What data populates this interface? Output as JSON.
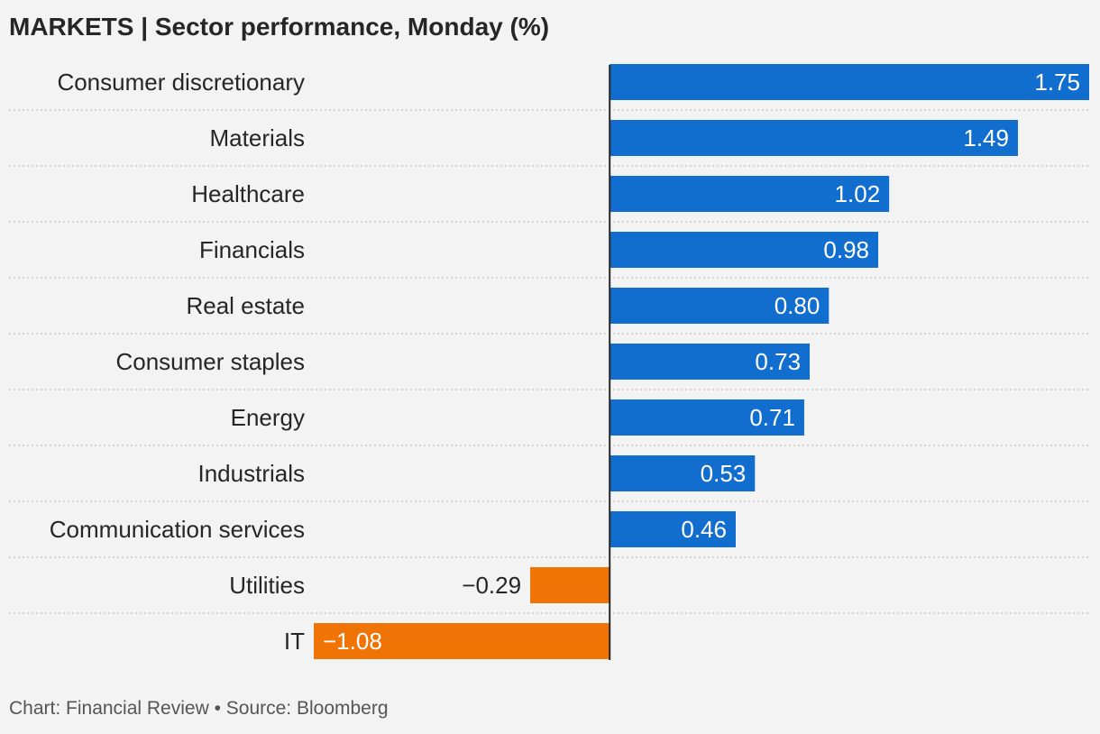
{
  "title": "MARKETS | Sector performance, Monday (%)",
  "footer": "Chart: Financial Review • Source: Bloomberg",
  "colors": {
    "positive": "#126ece",
    "negative": "#f07306",
    "axis": "#262626",
    "gridline": "#c9c9c9",
    "label_text": "#262626",
    "bar_text": "#ffffff",
    "background": "#f3f3f3"
  },
  "chart_data": {
    "type": "bar",
    "orientation": "horizontal",
    "categories": [
      "Consumer discretionary",
      "Materials",
      "Healthcare",
      "Financials",
      "Real estate",
      "Consumer staples",
      "Energy",
      "Industrials",
      "Communication services",
      "Utilities",
      "IT"
    ],
    "values": [
      1.75,
      1.49,
      1.02,
      0.98,
      0.8,
      0.73,
      0.71,
      0.53,
      0.46,
      -0.29,
      -1.08
    ],
    "value_labels": [
      "1.75",
      "1.49",
      "1.02",
      "0.98",
      "0.80",
      "0.73",
      "0.71",
      "0.53",
      "0.46",
      "−0.29",
      "−1.08"
    ],
    "xlim": [
      -1.08,
      1.75
    ],
    "title": "MARKETS | Sector performance, Monday (%)",
    "xlabel": "",
    "ylabel": "",
    "grid": "dotted row separators",
    "legend": "none"
  }
}
